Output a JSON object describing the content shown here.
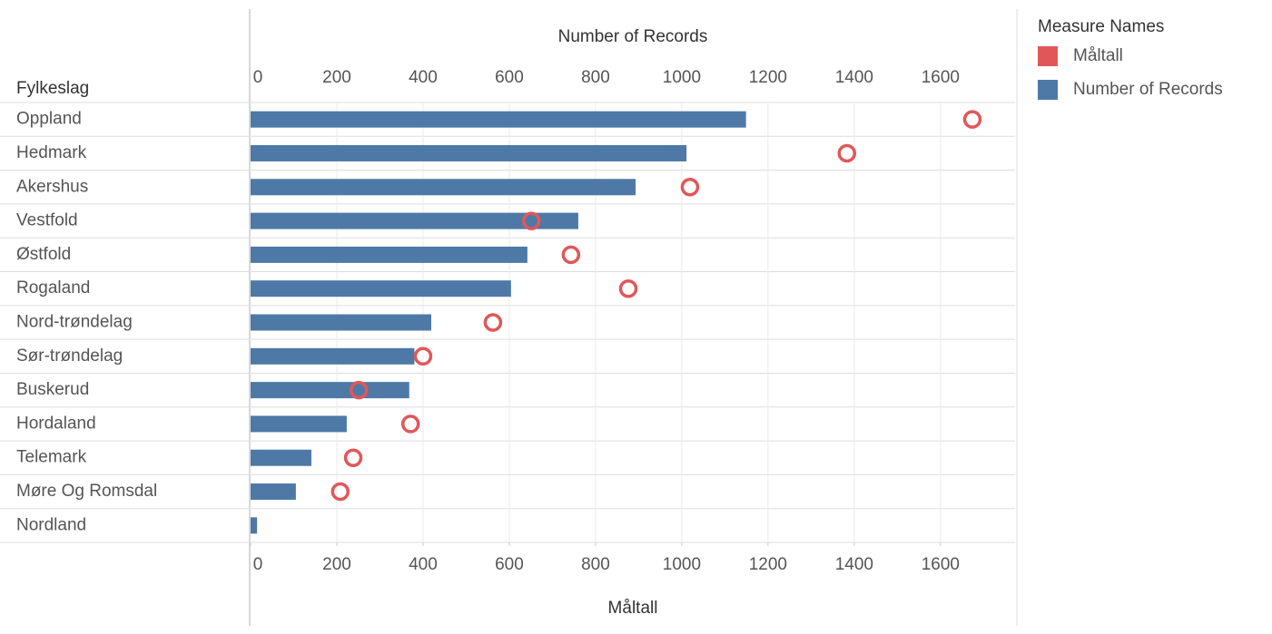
{
  "chart_data": {
    "type": "bar",
    "ylabel": "Fylkeslag",
    "xlabel": "Number of Records",
    "x2label": "Måltall",
    "legend_title": "Measure Names",
    "legend": "right",
    "grid": true,
    "categories": [
      "Oppland",
      "Hedmark",
      "Akershus",
      "Vestfold",
      "Østfold",
      "Rogaland",
      "Nord-trøndelag",
      "Sør-trøndelag",
      "Buskerud",
      "Hordaland",
      "Telemark",
      "Møre Og Romsdal",
      "Nordland"
    ],
    "series": [
      {
        "name": "Måltall",
        "color": "#e15759",
        "marker": "circle",
        "axis": "x2",
        "values": [
          1674,
          1383,
          1019,
          651,
          743,
          876,
          562,
          400,
          251,
          371,
          238,
          208,
          null
        ]
      },
      {
        "name": "Number of Records",
        "color": "#4e79a7",
        "marker": "bar",
        "axis": "x",
        "values": [
          1149,
          1011,
          893,
          760,
          642,
          604,
          419,
          380,
          368,
          223,
          141,
          105,
          15
        ]
      }
    ],
    "xlim": [
      0,
      1773
    ],
    "xticks": [
      0,
      200,
      400,
      600,
      800,
      1000,
      1200,
      1400,
      1600
    ],
    "x2lim": [
      0,
      1773
    ],
    "x2ticks": [
      0,
      200,
      400,
      600,
      800,
      1000,
      1200,
      1400,
      1600
    ]
  }
}
